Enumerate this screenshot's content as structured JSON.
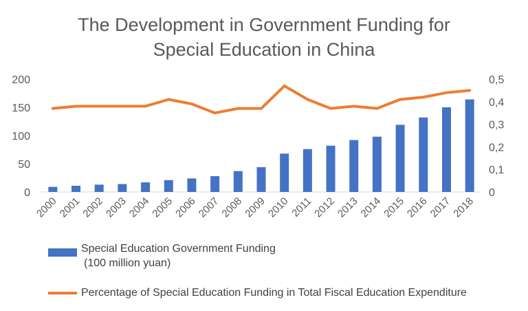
{
  "chart_data": {
    "type": "bar",
    "title_lines": [
      "The Development in Government Funding for",
      "Special Education in China"
    ],
    "categories": [
      "2000",
      "2001",
      "2002",
      "2003",
      "2004",
      "2005",
      "2006",
      "2007",
      "2008",
      "2009",
      "2010",
      "2011",
      "2012",
      "2013",
      "2014",
      "2015",
      "2016",
      "2017",
      "2018"
    ],
    "series": [
      {
        "name": "Special Education Government Funding",
        "name_line2": "(100 million yuan)",
        "type": "bar",
        "axis": "left",
        "color": "#4472c4",
        "values": [
          9,
          11,
          13,
          14,
          17,
          21,
          24,
          28,
          37,
          44,
          68,
          76,
          82,
          92,
          98,
          119,
          132,
          150,
          164
        ]
      },
      {
        "name": "Percentage of Special Education Funding in Total Fiscal Education Expenditure",
        "type": "line",
        "axis": "right",
        "color": "#ed7d31",
        "values": [
          0.37,
          0.38,
          0.38,
          0.38,
          0.38,
          0.41,
          0.39,
          0.35,
          0.37,
          0.37,
          0.47,
          0.41,
          0.37,
          0.38,
          0.37,
          0.41,
          0.42,
          0.44,
          0.45
        ]
      }
    ],
    "y_left": {
      "min": 0,
      "max": 200,
      "ticks": [
        "0",
        "50",
        "100",
        "150",
        "200"
      ]
    },
    "y_right": {
      "min": 0,
      "max": 0.5,
      "ticks": [
        "0",
        "0,1",
        "0,2",
        "0,3",
        "0,4",
        "0,5"
      ]
    },
    "grid": false,
    "legend_position": "bottom"
  }
}
